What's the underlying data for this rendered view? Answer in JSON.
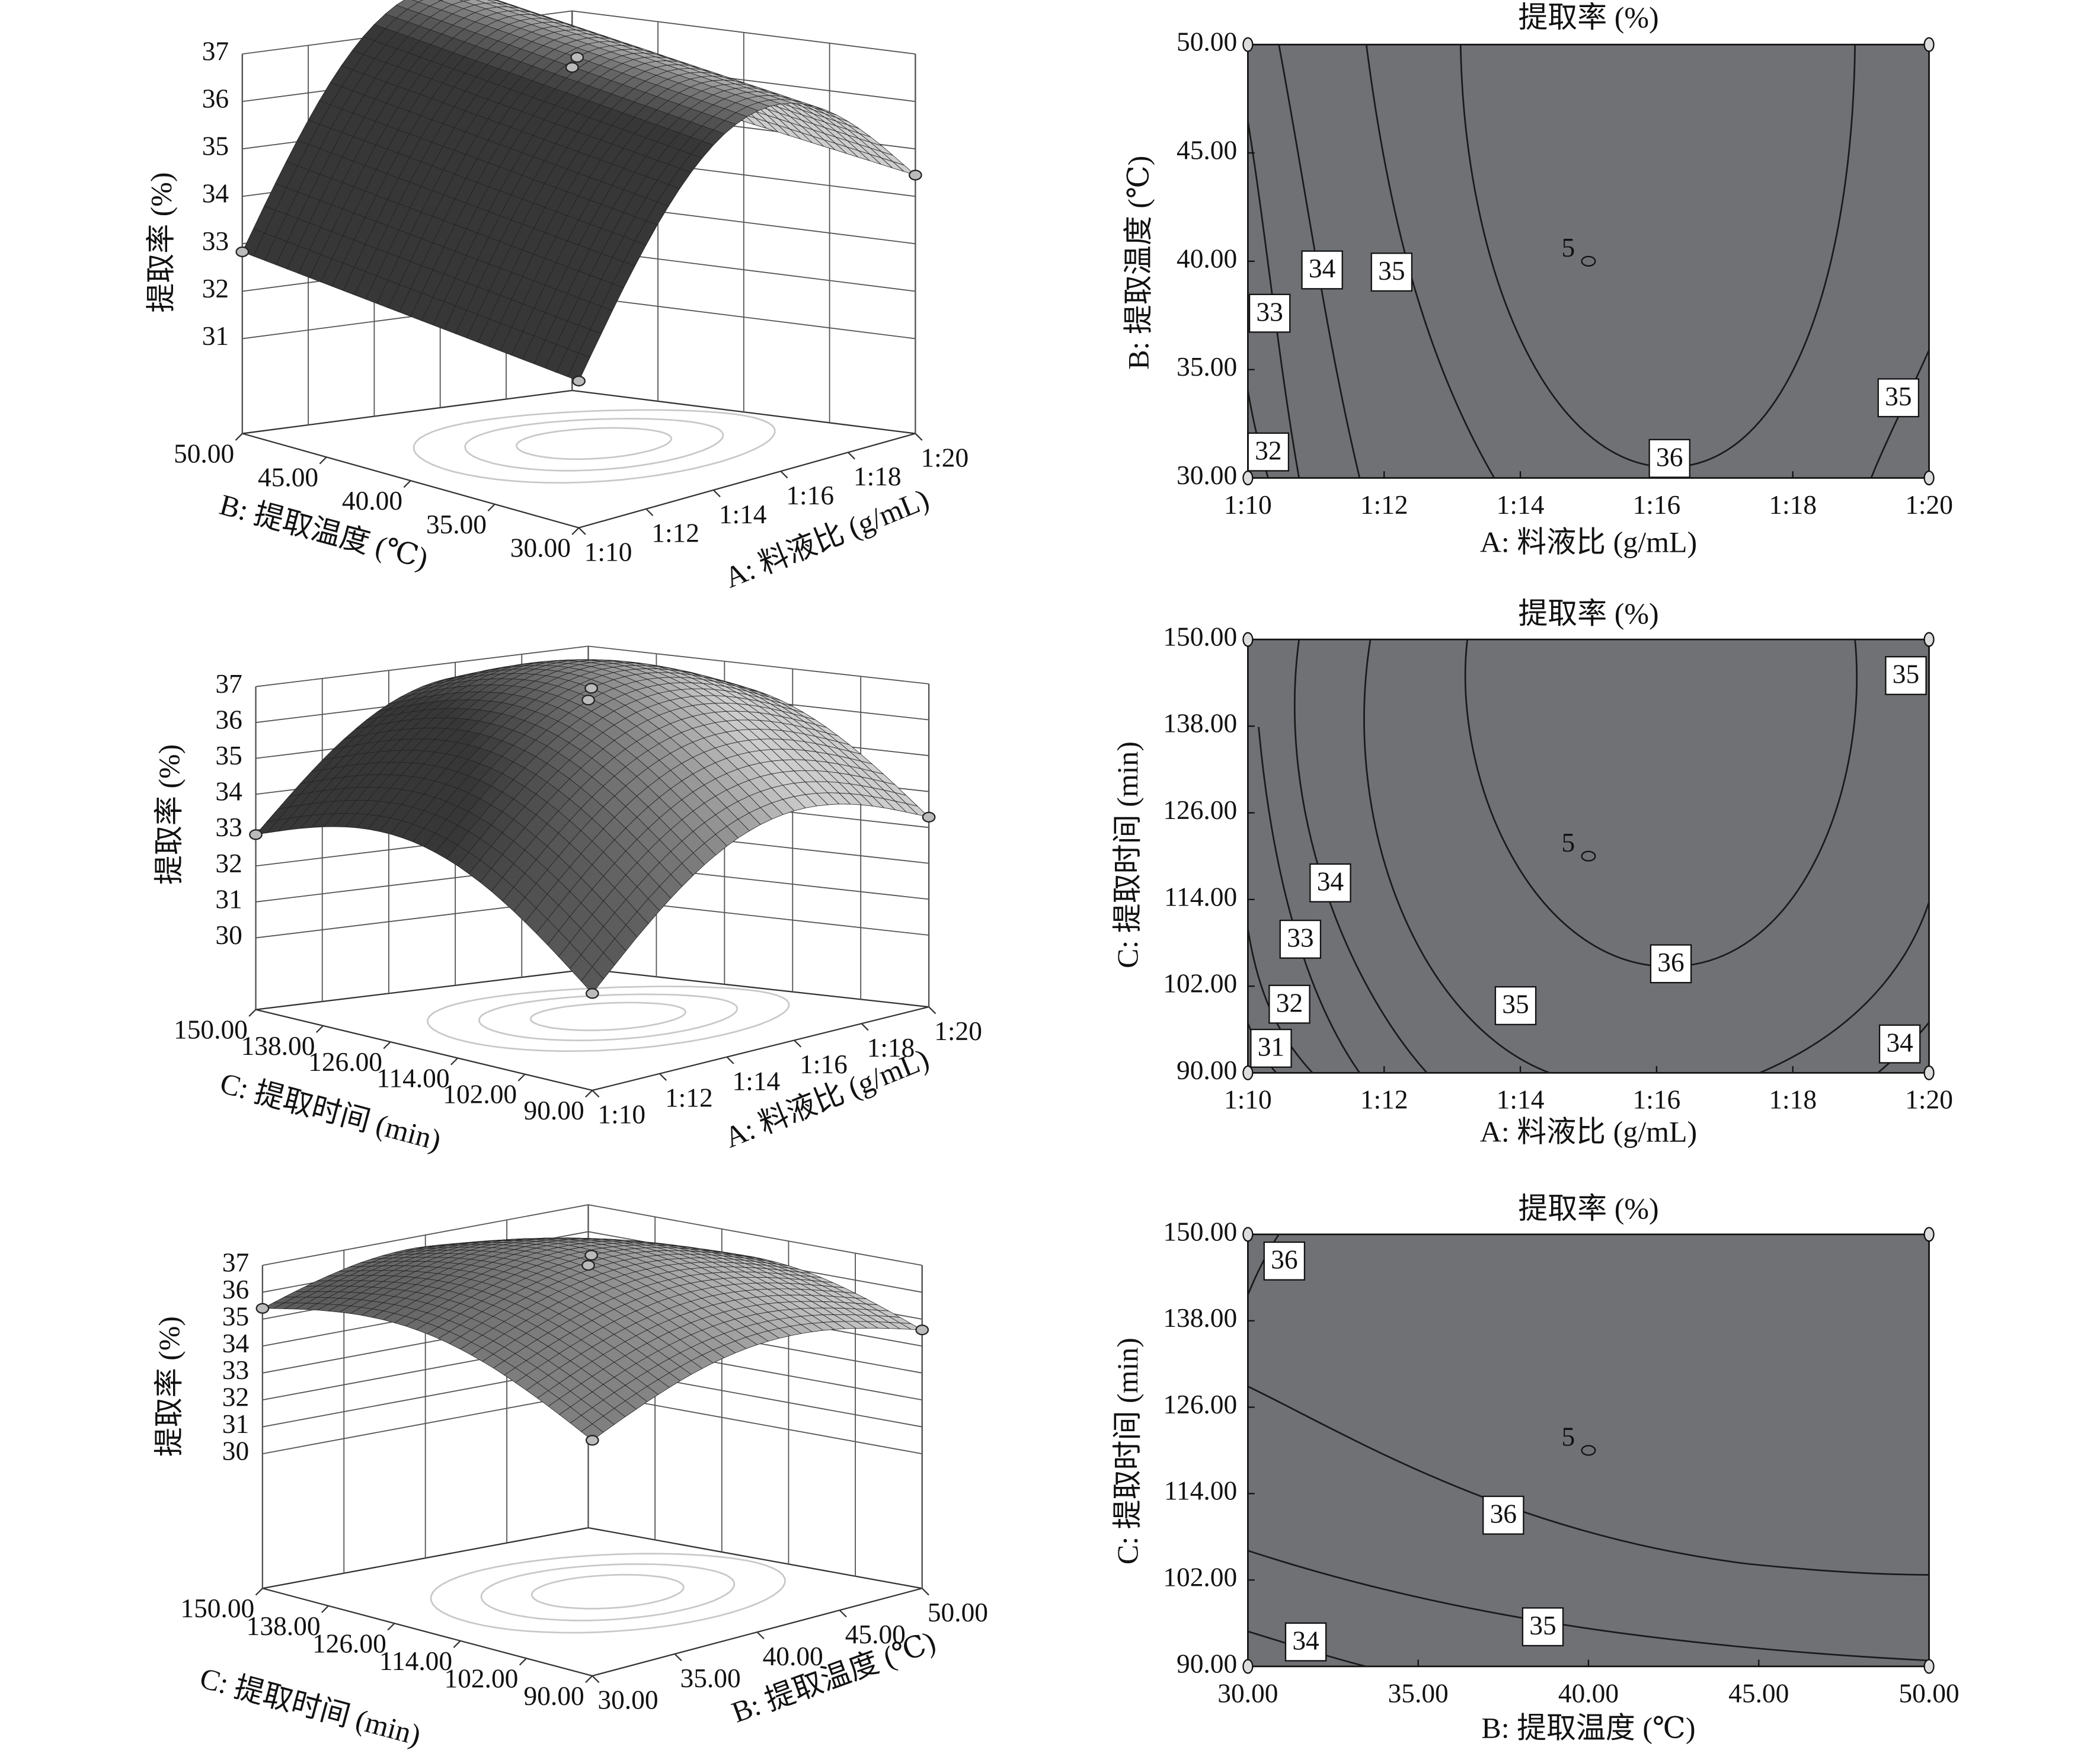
{
  "chart_data": [
    {
      "type": "surface3d",
      "zlabel": "提取率 (%)",
      "xlabel": "A: 料液比 (g/mL)",
      "ylabel": "B: 提取温度 (℃)",
      "xlim": [
        10,
        20
      ],
      "xticks": [
        {
          "value": 10,
          "label": "1:10"
        },
        {
          "value": 12,
          "label": "1:12"
        },
        {
          "value": 14,
          "label": "1:14"
        },
        {
          "value": 16,
          "label": "1:16"
        },
        {
          "value": 18,
          "label": "1:18"
        },
        {
          "value": 20,
          "label": "1:20"
        }
      ],
      "ylim": [
        30,
        50
      ],
      "yticks": [
        {
          "value": 30,
          "label": "30.00"
        },
        {
          "value": 35,
          "label": "35.00"
        },
        {
          "value": 40,
          "label": "40.00"
        },
        {
          "value": 45,
          "label": "45.00"
        },
        {
          "value": 50,
          "label": "50.00"
        }
      ],
      "zlim": [
        29,
        37
      ],
      "zticks": [
        31,
        32,
        33,
        34,
        35,
        36,
        37
      ]
    },
    {
      "type": "contour",
      "title": "提取率 (%)",
      "xlabel": "A: 料液比 (g/mL)",
      "ylabel": "B: 提取温度 (℃)",
      "xlim": [
        10,
        20
      ],
      "xticks": [
        {
          "value": 10,
          "label": "1:10"
        },
        {
          "value": 12,
          "label": "1:12"
        },
        {
          "value": 14,
          "label": "1:14"
        },
        {
          "value": 16,
          "label": "1:16"
        },
        {
          "value": 18,
          "label": "1:18"
        },
        {
          "value": 20,
          "label": "1:20"
        }
      ],
      "ylim": [
        30,
        50
      ],
      "yticks": [
        {
          "value": 30,
          "label": "30.00"
        },
        {
          "value": 35,
          "label": "35.00"
        },
        {
          "value": 40,
          "label": "40.00"
        },
        {
          "value": 45,
          "label": "45.00"
        },
        {
          "value": 50,
          "label": "50.00"
        }
      ],
      "contours": [
        {
          "level": 34,
          "x": 11.09,
          "y": 39.6
        },
        {
          "level": 35,
          "x": 12.11,
          "y": 39.5
        },
        {
          "level": 33,
          "x": 10.32,
          "y": 37.6
        },
        {
          "level": 32,
          "x": 10.3,
          "y": 31.2
        },
        {
          "level": 36,
          "x": 16.19,
          "y": 30.9
        },
        {
          "level": 35,
          "x": 19.55,
          "y": 33.7
        }
      ],
      "center": {
        "x": 15,
        "y": 40,
        "count": 5
      }
    },
    {
      "type": "surface3d",
      "zlabel": "提取率 (%)",
      "xlabel": "A: 料液比 (g/mL)",
      "ylabel": "C: 提取时间 (min)",
      "xlim": [
        10,
        20
      ],
      "xticks": [
        {
          "value": 10,
          "label": "1:10"
        },
        {
          "value": 12,
          "label": "1:12"
        },
        {
          "value": 14,
          "label": "1:14"
        },
        {
          "value": 16,
          "label": "1:16"
        },
        {
          "value": 18,
          "label": "1:18"
        },
        {
          "value": 20,
          "label": "1:20"
        }
      ],
      "ylim": [
        90,
        150
      ],
      "yticks": [
        {
          "value": 90,
          "label": "90.00"
        },
        {
          "value": 102,
          "label": "102.00"
        },
        {
          "value": 114,
          "label": "114.00"
        },
        {
          "value": 126,
          "label": "126.00"
        },
        {
          "value": 138,
          "label": "138.00"
        },
        {
          "value": 150,
          "label": "150.00"
        }
      ],
      "zlim": [
        28,
        37
      ],
      "zticks": [
        30,
        31,
        32,
        33,
        34,
        35,
        36,
        37
      ]
    },
    {
      "type": "contour",
      "title": "提取率 (%)",
      "xlabel": "A: 料液比 (g/mL)",
      "ylabel": "C: 提取时间 (min)",
      "xlim": [
        10,
        20
      ],
      "xticks": [
        {
          "value": 10,
          "label": "1:10"
        },
        {
          "value": 12,
          "label": "1:12"
        },
        {
          "value": 14,
          "label": "1:14"
        },
        {
          "value": 16,
          "label": "1:16"
        },
        {
          "value": 18,
          "label": "1:18"
        },
        {
          "value": 20,
          "label": "1:20"
        }
      ],
      "ylim": [
        90,
        150
      ],
      "yticks": [
        {
          "value": 90,
          "label": "90.00"
        },
        {
          "value": 102,
          "label": "102.00"
        },
        {
          "value": 114,
          "label": "114.00"
        },
        {
          "value": 126,
          "label": "126.00"
        },
        {
          "value": 138,
          "label": "138.00"
        },
        {
          "value": 150,
          "label": "150.00"
        }
      ],
      "contours": [
        {
          "level": 35,
          "x": 19.66,
          "y": 145.0
        },
        {
          "level": 34,
          "x": 11.21,
          "y": 116.3
        },
        {
          "level": 33,
          "x": 10.77,
          "y": 108.5
        },
        {
          "level": 32,
          "x": 10.61,
          "y": 99.5
        },
        {
          "level": 31,
          "x": 10.34,
          "y": 93.4
        },
        {
          "level": 35,
          "x": 13.93,
          "y": 99.3
        },
        {
          "level": 36,
          "x": 16.21,
          "y": 105.1
        },
        {
          "level": 34,
          "x": 19.57,
          "y": 94.0
        }
      ],
      "center": {
        "x": 15,
        "y": 120,
        "count": 5
      }
    },
    {
      "type": "surface3d",
      "zlabel": "提取率 (%)",
      "xlabel": "B: 提取温度 (℃)",
      "ylabel": "C: 提取时间 (min)",
      "xlim": [
        30,
        50
      ],
      "xticks": [
        {
          "value": 30,
          "label": "30.00"
        },
        {
          "value": 35,
          "label": "35.00"
        },
        {
          "value": 40,
          "label": "40.00"
        },
        {
          "value": 45,
          "label": "45.00"
        },
        {
          "value": 50,
          "label": "50.00"
        }
      ],
      "ylim": [
        90,
        150
      ],
      "yticks": [
        {
          "value": 90,
          "label": "90.00"
        },
        {
          "value": 102,
          "label": "102.00"
        },
        {
          "value": 114,
          "label": "114.00"
        },
        {
          "value": 126,
          "label": "126.00"
        },
        {
          "value": 138,
          "label": "138.00"
        },
        {
          "value": 150,
          "label": "150.00"
        }
      ],
      "zlim": [
        25,
        37
      ],
      "zticks": [
        30,
        31,
        32,
        33,
        34,
        35,
        36,
        37
      ]
    },
    {
      "type": "contour",
      "title": "提取率 (%)",
      "xlabel": "B: 提取温度 (℃)",
      "ylabel": "C: 提取时间 (min)",
      "xlim": [
        30,
        50
      ],
      "xticks": [
        {
          "value": 30,
          "label": "30.00"
        },
        {
          "value": 35,
          "label": "35.00"
        },
        {
          "value": 40,
          "label": "40.00"
        },
        {
          "value": 45,
          "label": "45.00"
        },
        {
          "value": 50,
          "label": "50.00"
        }
      ],
      "ylim": [
        90,
        150
      ],
      "yticks": [
        {
          "value": 90,
          "label": "90.00"
        },
        {
          "value": 102,
          "label": "102.00"
        },
        {
          "value": 114,
          "label": "114.00"
        },
        {
          "value": 126,
          "label": "126.00"
        },
        {
          "value": 138,
          "label": "138.00"
        },
        {
          "value": 150,
          "label": "150.00"
        }
      ],
      "contours": [
        {
          "level": 36,
          "x": 31.07,
          "y": 146.3
        },
        {
          "level": 36,
          "x": 37.5,
          "y": 111.0
        },
        {
          "level": 35,
          "x": 38.66,
          "y": 95.5
        },
        {
          "level": 34,
          "x": 31.7,
          "y": 93.4
        }
      ],
      "center": {
        "x": 40,
        "y": 120,
        "count": 5
      }
    }
  ]
}
